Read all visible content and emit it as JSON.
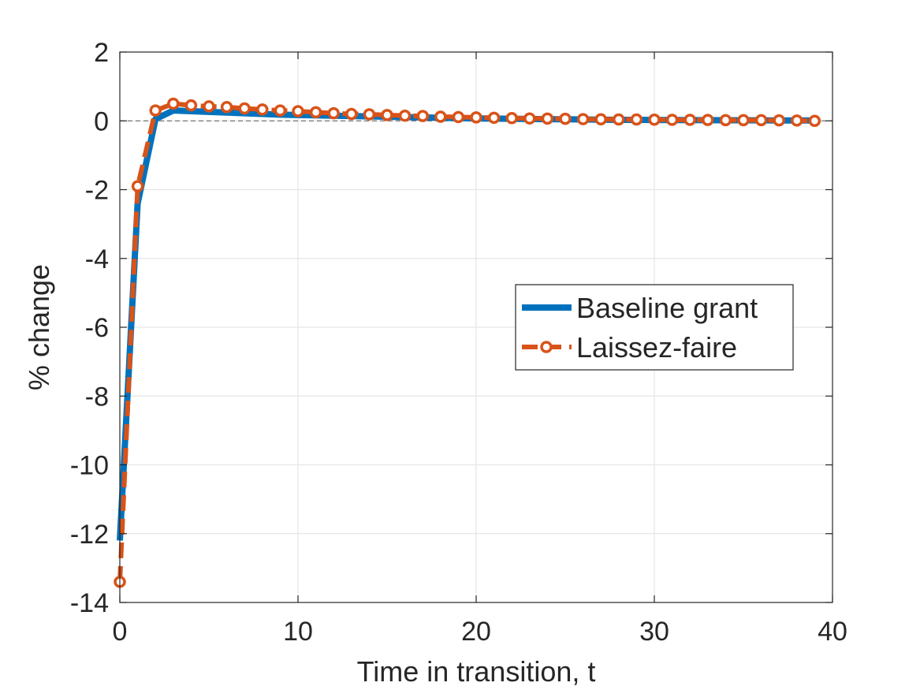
{
  "chart_data": {
    "type": "line",
    "title": "",
    "xlabel": "Time in transition, t",
    "ylabel": "% change",
    "xlim": [
      0,
      40
    ],
    "ylim": [
      -14,
      2
    ],
    "xticks": [
      0,
      10,
      20,
      30,
      40
    ],
    "yticks": [
      2,
      0,
      -2,
      -4,
      -6,
      -8,
      -10,
      -12,
      -14
    ],
    "xtick_labels": [
      "0",
      "10",
      "20",
      "30",
      "40"
    ],
    "ytick_labels": [
      "2",
      "0",
      "-2",
      "-4",
      "-6",
      "-8",
      "-10",
      "-12",
      "-14"
    ],
    "grid": true,
    "zero_reference_line": true,
    "legend_position": "center-right",
    "series": [
      {
        "name": "Baseline grant",
        "color": "#0072BD",
        "style": "solid",
        "marker": "none",
        "x": [
          0,
          1,
          2,
          3,
          4,
          5,
          6,
          7,
          8,
          9,
          10,
          11,
          12,
          13,
          14,
          15,
          16,
          17,
          18,
          19,
          20,
          21,
          22,
          23,
          24,
          25,
          26,
          27,
          28,
          29,
          30,
          31,
          32,
          33,
          34,
          35,
          36,
          37,
          38,
          39
        ],
        "y": [
          -12.2,
          -2.4,
          0.05,
          0.3,
          0.28,
          0.26,
          0.24,
          0.22,
          0.2,
          0.18,
          0.17,
          0.16,
          0.15,
          0.14,
          0.13,
          0.12,
          0.11,
          0.1,
          0.09,
          0.08,
          0.07,
          0.065,
          0.06,
          0.055,
          0.05,
          0.045,
          0.04,
          0.035,
          0.03,
          0.028,
          0.026,
          0.024,
          0.022,
          0.02,
          0.018,
          0.016,
          0.014,
          0.012,
          0.01,
          0.01
        ]
      },
      {
        "name": "Laissez-faire",
        "color": "#D95319",
        "style": "dashed",
        "marker": "circle",
        "x": [
          0,
          1,
          2,
          3,
          4,
          5,
          6,
          7,
          8,
          9,
          10,
          11,
          12,
          13,
          14,
          15,
          16,
          17,
          18,
          19,
          20,
          21,
          22,
          23,
          24,
          25,
          26,
          27,
          28,
          29,
          30,
          31,
          32,
          33,
          34,
          35,
          36,
          37,
          38,
          39
        ],
        "y": [
          -13.4,
          -1.9,
          0.3,
          0.5,
          0.45,
          0.42,
          0.4,
          0.36,
          0.33,
          0.3,
          0.28,
          0.25,
          0.22,
          0.2,
          0.19,
          0.17,
          0.15,
          0.14,
          0.12,
          0.11,
          0.1,
          0.09,
          0.08,
          0.07,
          0.065,
          0.06,
          0.05,
          0.045,
          0.04,
          0.04,
          0.035,
          0.03,
          0.03,
          0.025,
          0.02,
          0.02,
          0.02,
          0.015,
          0.01,
          0.0
        ]
      }
    ]
  }
}
